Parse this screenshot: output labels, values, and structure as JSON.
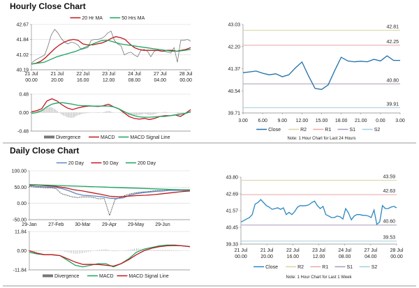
{
  "hourly_title": "Hourly Close Chart",
  "daily_title": "Daily Close Chart",
  "chart_data": [
    {
      "id": "hourly_ma",
      "type": "line",
      "yticks": [
        "42.67",
        "41.84",
        "41.02",
        "40.19"
      ],
      "ylim": [
        40.19,
        42.67
      ],
      "xticks": [
        [
          "21 Jul",
          "00.00"
        ],
        [
          "21 Jul",
          "20.00"
        ],
        [
          "22 Jul",
          "16.00"
        ],
        [
          "23 Jul",
          "12.00"
        ],
        [
          "24 Jul",
          "08.00"
        ],
        [
          "27 Jul",
          "04.00"
        ],
        [
          "28 Jul",
          "00.00"
        ]
      ],
      "grid": true,
      "legend": "top",
      "series": [
        {
          "name": "",
          "color": "#777777",
          "values": [
            40.55,
            40.7,
            40.8,
            40.9,
            41.0,
            41.5,
            42.1,
            42.4,
            42.2,
            41.9,
            41.7,
            41.6,
            41.7,
            41.65,
            41.55,
            41.3,
            41.35,
            41.4,
            41.8,
            41.85,
            41.85,
            41.9,
            42.0,
            42.2,
            42.3,
            41.8,
            41.6,
            41.5,
            41.0,
            41.1,
            41.15,
            41.0,
            40.9,
            41.25,
            41.3,
            41.2,
            40.9,
            41.2,
            41.25,
            41.2,
            41.2,
            41.15,
            41.1,
            41.4,
            40.6,
            41.8,
            41.8,
            41.85,
            41.75
          ]
        },
        {
          "name": "20 Hr MA",
          "color": "#c0161c",
          "values": [
            40.5,
            40.55,
            40.65,
            40.85,
            41.1,
            41.35,
            41.55,
            41.7,
            41.8,
            41.85,
            41.8,
            41.6,
            41.55,
            41.55,
            41.6,
            41.65,
            41.75,
            41.9,
            42.0,
            41.95,
            41.85,
            41.6,
            41.4,
            41.3,
            41.25,
            41.25,
            41.25,
            41.25,
            41.2,
            41.25,
            41.25,
            41.2,
            41.25,
            41.3,
            41.4
          ]
        },
        {
          "name": "50 Hrs MA",
          "color": "#1aa360",
          "values": [
            40.5,
            40.55,
            40.6,
            40.75,
            40.9,
            41.0,
            41.1,
            41.2,
            41.35,
            41.5,
            41.65,
            41.78,
            41.8,
            41.7,
            41.6,
            41.55,
            41.5,
            41.45,
            41.4,
            41.35,
            41.3,
            41.25,
            41.2,
            41.2,
            41.25,
            41.3
          ]
        }
      ]
    },
    {
      "id": "hourly_macd",
      "type": "line",
      "yticks": [
        "0.48",
        "0.00",
        "-0.48"
      ],
      "ylim": [
        -0.48,
        0.48
      ],
      "grid": true,
      "legend": "bottom",
      "divergence_name": "Divergence",
      "series": [
        {
          "name": "MACD",
          "color": "#c0161c",
          "values": [
            0.02,
            0.05,
            0.1,
            0.3,
            0.36,
            0.3,
            0.2,
            0.12,
            0.08,
            0.12,
            0.15,
            0.17,
            0.17,
            0.16,
            0.18,
            0.22,
            0.15,
            0.1,
            0.0,
            -0.1,
            -0.15,
            -0.17,
            -0.15,
            -0.18,
            -0.15,
            -0.1,
            -0.08,
            -0.08,
            -0.06,
            -0.1,
            -0.02,
            0.08
          ]
        },
        {
          "name": "MACD Signal Line",
          "color": "#1aa360",
          "values": [
            -0.02,
            0.0,
            0.05,
            0.15,
            0.22,
            0.25,
            0.26,
            0.24,
            0.22,
            0.19,
            0.18,
            0.18,
            0.17,
            0.17,
            0.17,
            0.17,
            0.15,
            0.1,
            0.03,
            -0.03,
            -0.08,
            -0.11,
            -0.12,
            -0.12,
            -0.11,
            -0.1,
            -0.1,
            -0.08,
            -0.06,
            -0.04,
            -0.02,
            0.02
          ]
        }
      ]
    },
    {
      "id": "hourly_levels",
      "type": "line",
      "yticks": [
        "43.03",
        "42.20",
        "41.37",
        "40.54",
        "39.71"
      ],
      "ylim": [
        39.71,
        43.03
      ],
      "xticks": [
        [
          "3.00"
        ],
        [
          "6.00"
        ],
        [
          "9.00"
        ],
        [
          "12.00"
        ],
        [
          "15.00"
        ],
        [
          "18.00"
        ],
        [
          "21.00"
        ],
        [
          "0.00"
        ],
        [
          "3.00"
        ]
      ],
      "legend": "bottom",
      "note": "Note: 1 Hour Chart for Last 24 Hours",
      "levels": [
        {
          "name": "R2",
          "value": 42.81,
          "label": "42.81",
          "color": "#d8d4a0"
        },
        {
          "name": "R1",
          "value": 42.25,
          "label": "42.25",
          "color": "#e8a8a8"
        },
        {
          "name": "S1",
          "value": 40.8,
          "label": "40.80",
          "color": "#a89ab8"
        },
        {
          "name": "S2",
          "value": 39.91,
          "label": "39.91",
          "color": "#9fd0dc"
        }
      ],
      "series": [
        {
          "name": "Close",
          "color": "#1f6fa8",
          "values": [
            41.22,
            41.25,
            41.28,
            41.2,
            41.14,
            41.18,
            41.07,
            41.14,
            41.4,
            41.62,
            41.1,
            40.63,
            40.59,
            40.76,
            41.3,
            41.8,
            41.66,
            41.63,
            41.65,
            41.63,
            41.72,
            41.66,
            41.85,
            41.68,
            41.68
          ]
        }
      ]
    },
    {
      "id": "daily_ma",
      "type": "line",
      "yticks": [
        "100.00",
        "50.00",
        "0.00",
        "-50.00"
      ],
      "ylim": [
        -50,
        100
      ],
      "xticks": [
        [
          "29-Jan"
        ],
        [
          "27-Feb"
        ],
        [
          "30-Mar"
        ],
        [
          "29-Apr"
        ],
        [
          "29-May"
        ],
        [
          "29-Jun"
        ]
      ],
      "grid": true,
      "legend": "top",
      "series": [
        {
          "name": "",
          "color": "#222222",
          "dash": true,
          "values": [
            52,
            50,
            49,
            48,
            48,
            45,
            30,
            25,
            20,
            18,
            20,
            20,
            18,
            14,
            15,
            -37,
            12,
            18,
            25,
            30,
            33,
            35,
            36,
            38,
            40,
            40,
            41,
            40,
            40,
            39,
            40
          ]
        },
        {
          "name": "20 Day",
          "color": "#5b87c0",
          "values": [
            55,
            52,
            51,
            50,
            49,
            45,
            38,
            30,
            25,
            24,
            22,
            20,
            16,
            15,
            17,
            25,
            30,
            33,
            35,
            37,
            38,
            40,
            40,
            40,
            40
          ]
        },
        {
          "name": "50 Day",
          "color": "#c0161c",
          "values": [
            57,
            56,
            54,
            52,
            48,
            42,
            38,
            33,
            28,
            22,
            20,
            22,
            24,
            25,
            27,
            30,
            33,
            36,
            38
          ]
        },
        {
          "name": "200 Day",
          "color": "#1aa360",
          "values": [
            58,
            57,
            56,
            55,
            54,
            53,
            52,
            51,
            50,
            49,
            48,
            47,
            46,
            45,
            44,
            43,
            42,
            42
          ]
        }
      ]
    },
    {
      "id": "daily_macd",
      "type": "line",
      "yticks": [
        "11.84",
        "0.00",
        "-11.84"
      ],
      "ylim": [
        -11.84,
        11.84
      ],
      "grid": true,
      "legend": "bottom",
      "divergence_name": "Divergence",
      "series": [
        {
          "name": "MACD",
          "color": "#1aa360",
          "values": [
            -1,
            -2,
            -2.5,
            -2.5,
            -3,
            -6,
            -9,
            -10,
            -9,
            -8,
            -8,
            -10,
            -8,
            -5,
            -1,
            1,
            2,
            3,
            3.5,
            3.5,
            3,
            2.5
          ]
        },
        {
          "name": "MACD Signal Line",
          "color": "#c0161c",
          "values": [
            0,
            -1.5,
            -2.5,
            -2.5,
            -3,
            -5,
            -7,
            -8.5,
            -8.5,
            -8.5,
            -9,
            -9.5,
            -8,
            -5.5,
            -2.5,
            0,
            1.5,
            2.5,
            3,
            3.2,
            3,
            2.5
          ]
        }
      ]
    },
    {
      "id": "weekly_levels",
      "type": "line",
      "yticks": [
        "43.80",
        "42.69",
        "41.57",
        "40.45",
        "39.33"
      ],
      "ylim": [
        39.33,
        43.8
      ],
      "xticks": [
        [
          "21 Jul",
          "00.00"
        ],
        [
          "21 Jul",
          "20.00"
        ],
        [
          "22 Jul",
          "16.00"
        ],
        [
          "23 Jul",
          "12.00"
        ],
        [
          "24 Jul",
          "08.00"
        ],
        [
          "27 Jul",
          "04.00"
        ],
        [
          "28 Jul",
          "00.00"
        ]
      ],
      "legend": "bottom",
      "note": "Note: 1 Hour Chart for Last 1 Week",
      "levels": [
        {
          "name": "R2",
          "value": 43.59,
          "label": "43.59",
          "color": "#d8d4a0"
        },
        {
          "name": "R1",
          "value": 42.63,
          "label": "42.63",
          "color": "#e8a8a8"
        },
        {
          "name": "S1",
          "value": 40.6,
          "label": "40.60",
          "color": "#a89ab8"
        },
        {
          "name": "S2",
          "value": 39.53,
          "label": "39.53",
          "color": "#9fd0dc"
        }
      ],
      "series": [
        {
          "name": "Close",
          "color": "#2a86c0",
          "values": [
            40.8,
            40.9,
            41.0,
            41.1,
            41.3,
            42.0,
            42.1,
            42.3,
            42.1,
            41.9,
            41.8,
            41.65,
            41.7,
            41.75,
            41.65,
            41.75,
            41.3,
            41.45,
            41.3,
            41.5,
            41.8,
            41.9,
            41.88,
            41.9,
            41.95,
            42.1,
            42.2,
            41.9,
            41.7,
            41.85,
            41.3,
            41.2,
            41.1,
            41.1,
            41.2,
            41.15,
            41.0,
            41.7,
            41.4,
            40.95,
            41.2,
            41.3,
            41.3,
            41.25,
            41.25,
            41.2,
            41.1,
            41.6,
            40.65,
            40.8,
            41.9,
            41.7,
            41.7,
            41.8,
            41.85,
            41.75
          ]
        }
      ]
    }
  ]
}
